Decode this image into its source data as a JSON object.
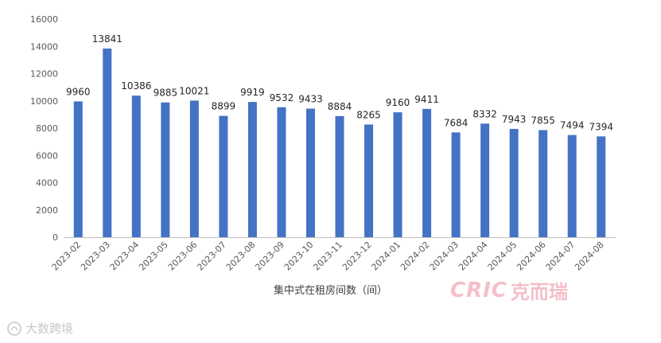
{
  "chart_data": {
    "type": "bar",
    "categories": [
      "2023-02",
      "2023-03",
      "2023-04",
      "2023-05",
      "2023-06",
      "2023-07",
      "2023-08",
      "2023-09",
      "2023-10",
      "2023-11",
      "2023-12",
      "2024-01",
      "2024-02",
      "2024-03",
      "2024-04",
      "2024-05",
      "2024-06",
      "2024-07",
      "2024-08"
    ],
    "values": [
      9960,
      13841,
      10386,
      9885,
      10021,
      8899,
      9919,
      9532,
      9433,
      8884,
      8265,
      9160,
      9411,
      7684,
      8332,
      7943,
      7855,
      7494,
      7394
    ],
    "xlabel": "集中式在租房间数（间）",
    "ylabel": "",
    "ylim": [
      0,
      16000
    ],
    "yticks": [
      0,
      2000,
      4000,
      6000,
      8000,
      10000,
      12000,
      14000,
      16000
    ],
    "grid": false,
    "legend": "none",
    "bar_color": "#4472c4"
  },
  "brand": {
    "latin": "CRIC",
    "chinese": "克而瑞"
  },
  "watermark": {
    "text": "大数跨境"
  }
}
